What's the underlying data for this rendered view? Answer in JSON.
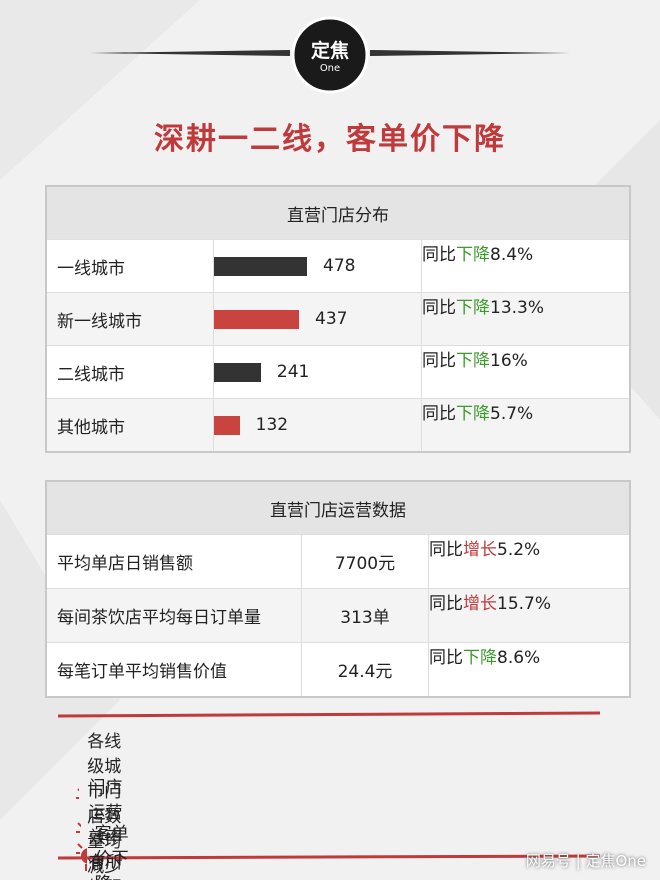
{
  "header": {
    "logo_text": "定焦",
    "logo_sub": "One",
    "title": "深耕一二线，客单价下降"
  },
  "store_table": {
    "title": "直营门店分布",
    "rows": [
      {
        "city": "一线城市",
        "count": 478,
        "prefix": "同比",
        "trend": "下降",
        "change": "8.4%"
      },
      {
        "city": "新一线城市",
        "count": 437,
        "prefix": "同比",
        "trend": "下降",
        "change": "13.3%"
      },
      {
        "city": "二线城市",
        "count": 241,
        "prefix": "同比",
        "trend": "下降",
        "change": "16%"
      },
      {
        "city": "其他城市",
        "count": 132,
        "prefix": "同比",
        "trend": "下降",
        "change": "5.7%"
      }
    ]
  },
  "ops_table": {
    "title": "直营门店运营数据",
    "rows": [
      {
        "metric": "平均单店日销售额",
        "value": "7700元",
        "prefix": "同比",
        "trend": "增长",
        "change": "5.2%"
      },
      {
        "metric": "每间茶饮店平均每日订单量",
        "value": "313单",
        "prefix": "同比",
        "trend": "增长",
        "change": "15.7%"
      },
      {
        "metric": "每笔订单平均销售价值",
        "value": "24.4元",
        "prefix": "同比",
        "trend": "下降",
        "change": "8.6%"
      }
    ]
  },
  "bullets": [
    "各线级城市门店数量均减少",
    "门店运营效率有所增强",
    "客单价下降"
  ],
  "watermark": "网易号 | 定焦One"
}
